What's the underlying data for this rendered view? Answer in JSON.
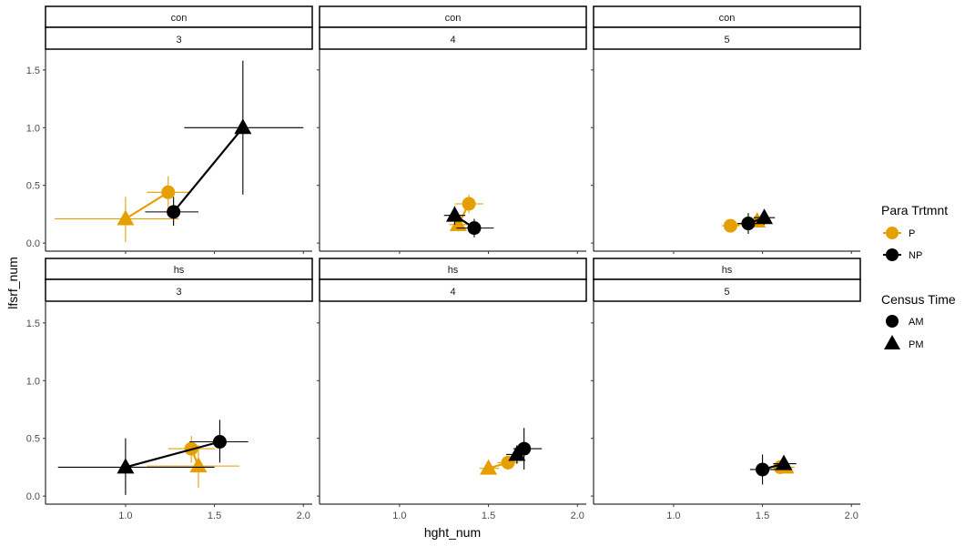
{
  "chart_data": {
    "type": "scatter",
    "xlabel": "hght_num",
    "ylabel": "lfsrf_num",
    "xlim": [
      0.55,
      2.05
    ],
    "ylim": [
      -0.07,
      1.68
    ],
    "x_ticks": [
      "1.0",
      "1.5",
      "2.0"
    ],
    "y_ticks": [
      "0.0",
      "0.5",
      "1.0",
      "1.5"
    ],
    "grid": false,
    "legend_position": "right",
    "legend": {
      "color_title": "Para Trtmnt",
      "color_entries": [
        {
          "label": "P",
          "color": "#E69F00"
        },
        {
          "label": "NP",
          "color": "#000000"
        }
      ],
      "shape_title": "Census Time",
      "shape_entries": [
        {
          "label": "AM",
          "shape": "circle"
        },
        {
          "label": "PM",
          "shape": "triangle"
        }
      ]
    },
    "panels": [
      {
        "row_label": "con",
        "col_label": "3",
        "series": [
          {
            "treatment": "P",
            "points": [
              {
                "time": "PM",
                "x": 1.0,
                "y": 0.21,
                "xerr": [
                  0.6,
                  1.3
                ],
                "yerr": [
                  0.01,
                  0.4
                ]
              },
              {
                "time": "AM",
                "x": 1.24,
                "y": 0.44,
                "xerr": [
                  1.12,
                  1.37
                ],
                "yerr": [
                  0.3,
                  0.58
                ]
              }
            ]
          },
          {
            "treatment": "NP",
            "points": [
              {
                "time": "AM",
                "x": 1.27,
                "y": 0.27,
                "xerr": [
                  1.11,
                  1.41
                ],
                "yerr": [
                  0.15,
                  0.4
                ]
              },
              {
                "time": "PM",
                "x": 1.66,
                "y": 1.0,
                "xerr": [
                  1.33,
                  2.0
                ],
                "yerr": [
                  0.42,
                  1.58
                ]
              }
            ]
          }
        ]
      },
      {
        "row_label": "con",
        "col_label": "4",
        "series": [
          {
            "treatment": "P",
            "points": [
              {
                "time": "PM",
                "x": 1.33,
                "y": 0.16,
                "xerr": [
                  1.28,
                  1.38
                ],
                "yerr": [
                  0.1,
                  0.22
                ]
              },
              {
                "time": "AM",
                "x": 1.39,
                "y": 0.34,
                "xerr": [
                  1.31,
                  1.47
                ],
                "yerr": [
                  0.26,
                  0.42
                ]
              }
            ]
          },
          {
            "treatment": "NP",
            "points": [
              {
                "time": "PM",
                "x": 1.31,
                "y": 0.24,
                "xerr": [
                  1.25,
                  1.37
                ],
                "yerr": [
                  0.16,
                  0.32
                ]
              },
              {
                "time": "AM",
                "x": 1.42,
                "y": 0.13,
                "xerr": [
                  1.32,
                  1.53
                ],
                "yerr": [
                  0.05,
                  0.21
                ]
              }
            ]
          }
        ]
      },
      {
        "row_label": "con",
        "col_label": "5",
        "series": [
          {
            "treatment": "P",
            "points": [
              {
                "time": "AM",
                "x": 1.32,
                "y": 0.15,
                "xerr": [
                  1.27,
                  1.37
                ],
                "yerr": [
                  0.13,
                  0.17
                ]
              },
              {
                "time": "PM",
                "x": 1.47,
                "y": 0.19,
                "xerr": [
                  1.41,
                  1.53
                ],
                "yerr": [
                  0.14,
                  0.24
                ]
              }
            ]
          },
          {
            "treatment": "NP",
            "points": [
              {
                "time": "AM",
                "x": 1.42,
                "y": 0.17,
                "xerr": [
                  1.36,
                  1.48
                ],
                "yerr": [
                  0.08,
                  0.26
                ]
              },
              {
                "time": "PM",
                "x": 1.51,
                "y": 0.22,
                "xerr": [
                  1.45,
                  1.57
                ],
                "yerr": [
                  0.16,
                  0.28
                ]
              }
            ]
          }
        ]
      },
      {
        "row_label": "hs",
        "col_label": "3",
        "series": [
          {
            "treatment": "P",
            "points": [
              {
                "time": "AM",
                "x": 1.37,
                "y": 0.41,
                "xerr": [
                  1.24,
                  1.5
                ],
                "yerr": [
                  0.29,
                  0.52
                ]
              },
              {
                "time": "PM",
                "x": 1.41,
                "y": 0.26,
                "xerr": [
                  1.12,
                  1.64
                ],
                "yerr": [
                  0.07,
                  0.44
                ]
              }
            ]
          },
          {
            "treatment": "NP",
            "points": [
              {
                "time": "PM",
                "x": 1.0,
                "y": 0.25,
                "xerr": [
                  0.62,
                  1.5
                ],
                "yerr": [
                  0.01,
                  0.5
                ]
              },
              {
                "time": "AM",
                "x": 1.53,
                "y": 0.47,
                "xerr": [
                  1.36,
                  1.69
                ],
                "yerr": [
                  0.29,
                  0.66
                ]
              }
            ]
          }
        ]
      },
      {
        "row_label": "hs",
        "col_label": "4",
        "series": [
          {
            "treatment": "P",
            "points": [
              {
                "time": "PM",
                "x": 1.5,
                "y": 0.24,
                "xerr": [
                  1.45,
                  1.56
                ],
                "yerr": [
                  0.2,
                  0.28
                ]
              },
              {
                "time": "AM",
                "x": 1.61,
                "y": 0.29,
                "xerr": [
                  1.55,
                  1.67
                ],
                "yerr": [
                  0.23,
                  0.35
                ]
              }
            ]
          },
          {
            "treatment": "NP",
            "points": [
              {
                "time": "PM",
                "x": 1.66,
                "y": 0.36,
                "xerr": [
                  1.6,
                  1.72
                ],
                "yerr": [
                  0.28,
                  0.44
                ]
              },
              {
                "time": "AM",
                "x": 1.7,
                "y": 0.41,
                "xerr": [
                  1.64,
                  1.8
                ],
                "yerr": [
                  0.23,
                  0.59
                ]
              }
            ]
          }
        ]
      },
      {
        "row_label": "hs",
        "col_label": "5",
        "series": [
          {
            "treatment": "P",
            "points": [
              {
                "time": "AM",
                "x": 1.6,
                "y": 0.25,
                "xerr": [
                  1.56,
                  1.65
                ],
                "yerr": [
                  0.21,
                  0.29
                ]
              },
              {
                "time": "PM",
                "x": 1.63,
                "y": 0.25,
                "xerr": [
                  1.58,
                  1.68
                ],
                "yerr": [
                  0.22,
                  0.28
                ]
              }
            ]
          },
          {
            "treatment": "NP",
            "points": [
              {
                "time": "AM",
                "x": 1.5,
                "y": 0.23,
                "xerr": [
                  1.43,
                  1.58
                ],
                "yerr": [
                  0.1,
                  0.36
                ]
              },
              {
                "time": "PM",
                "x": 1.62,
                "y": 0.28,
                "xerr": [
                  1.56,
                  1.69
                ],
                "yerr": [
                  0.24,
                  0.32
                ]
              }
            ]
          }
        ]
      }
    ]
  }
}
